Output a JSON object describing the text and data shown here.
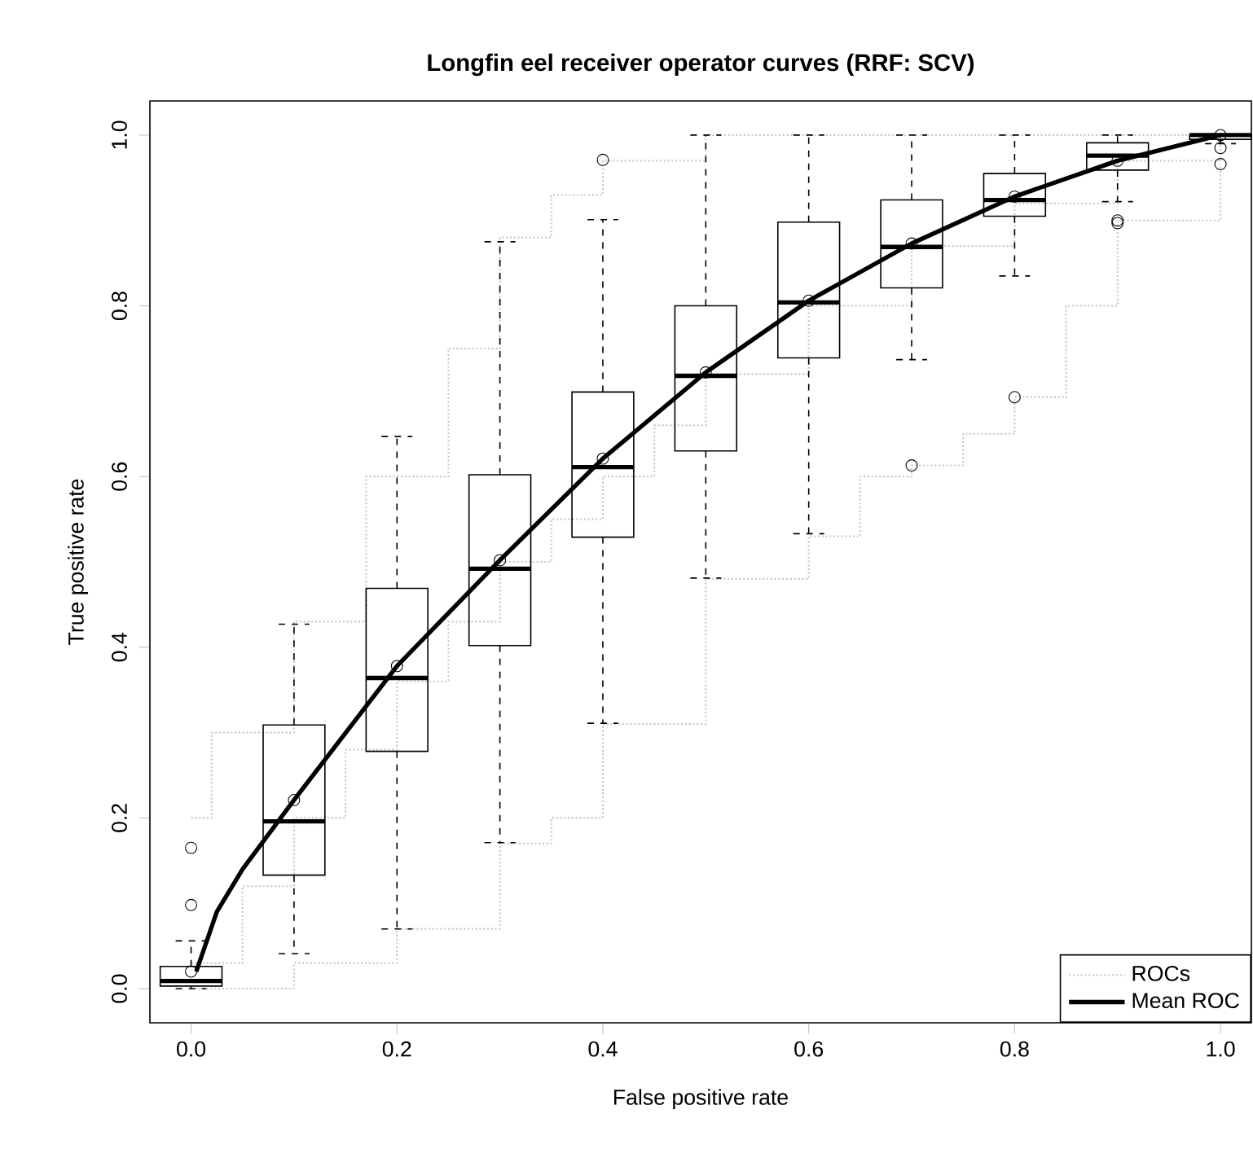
{
  "chart_data": {
    "type": "line",
    "title": "Longfin eel receiver operator curves (RRF: SCV)",
    "xlabel": "False positive rate",
    "ylabel": "True positive rate",
    "xlim": [
      -0.04,
      1.03
    ],
    "ylim": [
      -0.04,
      1.04
    ],
    "xticks": [
      {
        "value": 0,
        "label": "0.0"
      },
      0.2,
      0.4,
      0.6,
      0.8,
      {
        "value": 1,
        "label": "1.0"
      }
    ],
    "yticks": [
      {
        "value": 0,
        "label": "0.0"
      },
      0.2,
      0.4,
      0.6,
      0.8,
      {
        "value": 1,
        "label": "1.0"
      }
    ],
    "legend": "bottom right",
    "grid": false,
    "series": [
      {
        "type": "step",
        "name": "ROCs",
        "color": "#c8c8c8",
        "line_style": "dotted",
        "x": [
          0,
          0.02,
          0.1,
          0.17,
          0.25,
          0.3,
          0.35,
          0.4,
          0.5,
          1.0
        ],
        "values": [
          0.2,
          0.3,
          0.43,
          0.6,
          0.75,
          0.88,
          0.93,
          0.97,
          1.0,
          1.0
        ]
      },
      {
        "type": "step",
        "color": "#c8c8c8",
        "line_style": "dotted",
        "x": [
          0,
          0.05,
          0.1,
          0.15,
          0.2,
          0.25,
          0.3,
          0.35,
          0.4,
          0.45,
          0.5,
          0.6,
          0.7,
          0.8,
          0.9,
          1.0
        ],
        "values": [
          0.03,
          0.12,
          0.2,
          0.28,
          0.36,
          0.43,
          0.5,
          0.55,
          0.6,
          0.66,
          0.72,
          0.8,
          0.87,
          0.92,
          0.97,
          1.0
        ]
      },
      {
        "type": "step",
        "color": "#c8c8c8",
        "line_style": "dotted",
        "x": [
          0,
          0.1,
          0.2,
          0.3,
          0.35,
          0.4,
          0.5,
          0.6,
          0.65,
          0.7,
          0.75,
          0.8,
          0.85,
          0.9,
          1.0
        ],
        "values": [
          0,
          0.03,
          0.07,
          0.17,
          0.2,
          0.31,
          0.48,
          0.53,
          0.6,
          0.613,
          0.65,
          0.693,
          0.8,
          0.9,
          0.966
        ]
      },
      {
        "type": "box",
        "color": "#000000",
        "x": [
          0,
          0.1,
          0.2,
          0.3,
          0.4,
          0.5,
          0.6,
          0.7,
          0.8,
          0.9,
          1.0
        ],
        "boxes": [
          {
            "low": 0.0,
            "q1": 0.003,
            "median": 0.009,
            "q3": 0.026,
            "high": 0.056,
            "mean": 0.02,
            "outliers": [
              0.098,
              0.165
            ]
          },
          {
            "low": 0.041,
            "q1": 0.133,
            "median": 0.196,
            "q3": 0.309,
            "high": 0.427,
            "mean": 0.221
          },
          {
            "low": 0.07,
            "q1": 0.278,
            "median": 0.364,
            "q3": 0.469,
            "high": 0.647,
            "mean": 0.378
          },
          {
            "low": 0.171,
            "q1": 0.402,
            "median": 0.492,
            "q3": 0.602,
            "high": 0.875,
            "mean": 0.502
          },
          {
            "low": 0.311,
            "q1": 0.529,
            "median": 0.611,
            "q3": 0.699,
            "high": 0.901,
            "mean": 0.621,
            "outliers": [
              0.971
            ]
          },
          {
            "low": 0.481,
            "q1": 0.63,
            "median": 0.718,
            "q3": 0.8,
            "high": 1.0,
            "mean": 0.722
          },
          {
            "low": 0.533,
            "q1": 0.739,
            "median": 0.804,
            "q3": 0.898,
            "high": 1.0,
            "mean": 0.806
          },
          {
            "low": 0.737,
            "q1": 0.821,
            "median": 0.869,
            "q3": 0.924,
            "high": 1.0,
            "mean": 0.873,
            "outliers": [
              0.613
            ]
          },
          {
            "low": 0.835,
            "q1": 0.905,
            "median": 0.924,
            "q3": 0.955,
            "high": 1.0,
            "mean": 0.928,
            "outliers": [
              0.693
            ]
          },
          {
            "low": 0.922,
            "q1": 0.959,
            "median": 0.976,
            "q3": 0.991,
            "high": 1.0,
            "mean": 0.97,
            "outliers": [
              0.897,
              0.9
            ]
          },
          {
            "low": 0.99,
            "q1": 0.995,
            "median": 1.0,
            "q3": 1.0,
            "high": 1.0,
            "mean": 1.0,
            "outliers": [
              0.985,
              0.966
            ]
          }
        ]
      },
      {
        "name": "Mean ROC",
        "color": "#000000",
        "line_style": "solid",
        "x": [
          0.005,
          0.025,
          0.05,
          0.1,
          0.2,
          0.3,
          0.4,
          0.5,
          0.6,
          0.7,
          0.8,
          0.9,
          1.0
        ],
        "values": [
          0.02,
          0.09,
          0.14,
          0.221,
          0.378,
          0.502,
          0.621,
          0.722,
          0.806,
          0.873,
          0.928,
          0.97,
          1.0
        ]
      }
    ]
  }
}
